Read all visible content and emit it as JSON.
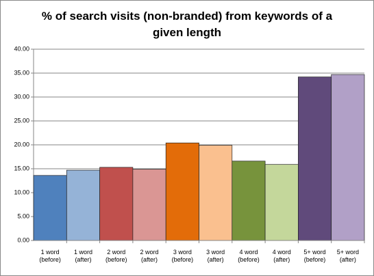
{
  "chart_data": {
    "type": "bar",
    "title": "% of search visits (non-branded) from keywords of a given length",
    "categories": [
      "1 word (before)",
      "1 word (after)",
      "2 word (before)",
      "2 word (after)",
      "3 word (before)",
      "3 word (after)",
      "4 word (before)",
      "4 word (after)",
      "5+ word (before)",
      "5+ word (after)"
    ],
    "values": [
      13.6,
      14.7,
      15.3,
      14.9,
      20.4,
      19.9,
      16.6,
      15.9,
      34.2,
      34.7
    ],
    "colors": [
      "#4f81bd",
      "#95b3d7",
      "#c0504d",
      "#da9694",
      "#e36c09",
      "#fac08f",
      "#77933c",
      "#c4d79b",
      "#604a7b",
      "#b1a0c7"
    ],
    "ylim": [
      0,
      40
    ],
    "yticks": [
      {
        "value": 0,
        "label": "0.00"
      },
      {
        "value": 5,
        "label": "5.00"
      },
      {
        "value": 10,
        "label": "10.00"
      },
      {
        "value": 15,
        "label": "15.00"
      },
      {
        "value": 20,
        "label": "20.00"
      },
      {
        "value": 25,
        "label": "25.00"
      },
      {
        "value": 30,
        "label": "30.00"
      },
      {
        "value": 35,
        "label": "35.00"
      },
      {
        "value": 40,
        "label": "40.00"
      }
    ],
    "grid": true
  }
}
